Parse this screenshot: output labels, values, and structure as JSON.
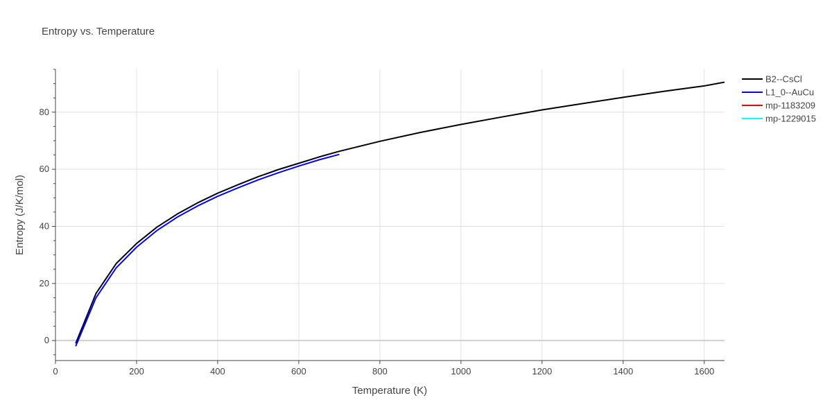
{
  "chart_data": {
    "type": "line",
    "title": "Entropy vs. Temperature",
    "xlabel": "Temperature (K)",
    "ylabel": "Entropy (J/K/mol)",
    "xlim": [
      0,
      1650
    ],
    "ylim": [
      -7,
      95
    ],
    "xticks": [
      0,
      200,
      400,
      600,
      800,
      1000,
      1200,
      1400,
      1600
    ],
    "yticks": [
      0,
      20,
      40,
      60,
      80
    ],
    "grid": true,
    "legend_position": "top-right",
    "series": [
      {
        "name": "B2--CsCl",
        "color": "#000000",
        "x": [
          50,
          100,
          150,
          200,
          250,
          300,
          350,
          400,
          450,
          500,
          550,
          600,
          650,
          700,
          800,
          900,
          1000,
          1100,
          1200,
          1300,
          1400,
          1500,
          1600,
          1650
        ],
        "y": [
          -1,
          16.5,
          27,
          34,
          39.7,
          44.3,
          48.2,
          51.6,
          54.6,
          57.4,
          59.9,
          62.1,
          64.3,
          66.3,
          69.8,
          72.9,
          75.7,
          78.3,
          80.8,
          83.0,
          85.2,
          87.3,
          89.2,
          90.5
        ]
      },
      {
        "name": "L1_0--AuCu",
        "color": "#0000ff",
        "x": [
          50,
          100,
          150,
          200,
          250,
          300,
          350,
          400,
          450,
          500,
          550,
          600,
          650,
          700
        ],
        "y": [
          -2,
          15,
          25.5,
          32.7,
          38.5,
          43.2,
          47.1,
          50.5,
          53.5,
          56.3,
          58.8,
          61.1,
          63.3,
          65.2
        ]
      },
      {
        "name": "mp-1183209",
        "color": "#ff0000",
        "x": [],
        "y": []
      },
      {
        "name": "mp-1229015",
        "color": "#00ffff",
        "x": [],
        "y": []
      }
    ]
  }
}
